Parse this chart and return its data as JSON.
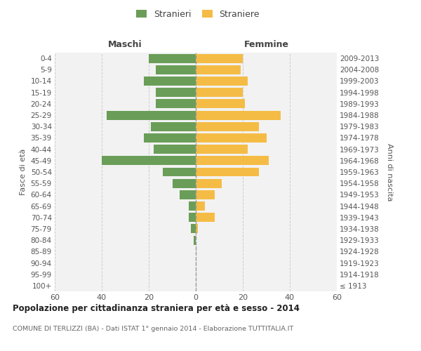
{
  "age_groups": [
    "100+",
    "95-99",
    "90-94",
    "85-89",
    "80-84",
    "75-79",
    "70-74",
    "65-69",
    "60-64",
    "55-59",
    "50-54",
    "45-49",
    "40-44",
    "35-39",
    "30-34",
    "25-29",
    "20-24",
    "15-19",
    "10-14",
    "5-9",
    "0-4"
  ],
  "birth_years": [
    "≤ 1913",
    "1914-1918",
    "1919-1923",
    "1924-1928",
    "1929-1933",
    "1934-1938",
    "1939-1943",
    "1944-1948",
    "1949-1953",
    "1954-1958",
    "1959-1963",
    "1964-1968",
    "1969-1973",
    "1974-1978",
    "1979-1983",
    "1984-1988",
    "1989-1993",
    "1994-1998",
    "1999-2003",
    "2004-2008",
    "2009-2013"
  ],
  "males": [
    0,
    0,
    0,
    0,
    1,
    2,
    3,
    3,
    7,
    10,
    14,
    40,
    18,
    22,
    19,
    38,
    17,
    17,
    22,
    17,
    20
  ],
  "females": [
    0,
    0,
    0,
    0,
    0,
    1,
    8,
    4,
    8,
    11,
    27,
    31,
    22,
    30,
    27,
    36,
    21,
    20,
    22,
    19,
    20
  ],
  "male_color": "#6a9e58",
  "female_color": "#f5bc45",
  "center_line_color": "#999999",
  "grid_color": "#cccccc",
  "background_color": "#ffffff",
  "plot_bg_color": "#f2f2f2",
  "title": "Popolazione per cittadinanza straniera per età e sesso - 2014",
  "subtitle": "COMUNE DI TERLIZZI (BA) - Dati ISTAT 1° gennaio 2014 - Elaborazione TUTTITALIA.IT",
  "xlabel_left": "Maschi",
  "xlabel_right": "Femmine",
  "ylabel_left": "Fasce di età",
  "ylabel_right": "Anni di nascita",
  "legend_male": "Stranieri",
  "legend_female": "Straniere",
  "xlim": [
    -60,
    60
  ],
  "xticks": [
    -60,
    -40,
    -20,
    0,
    20,
    40,
    60
  ],
  "xticklabels": [
    "60",
    "40",
    "20",
    "0",
    "20",
    "40",
    "60"
  ]
}
